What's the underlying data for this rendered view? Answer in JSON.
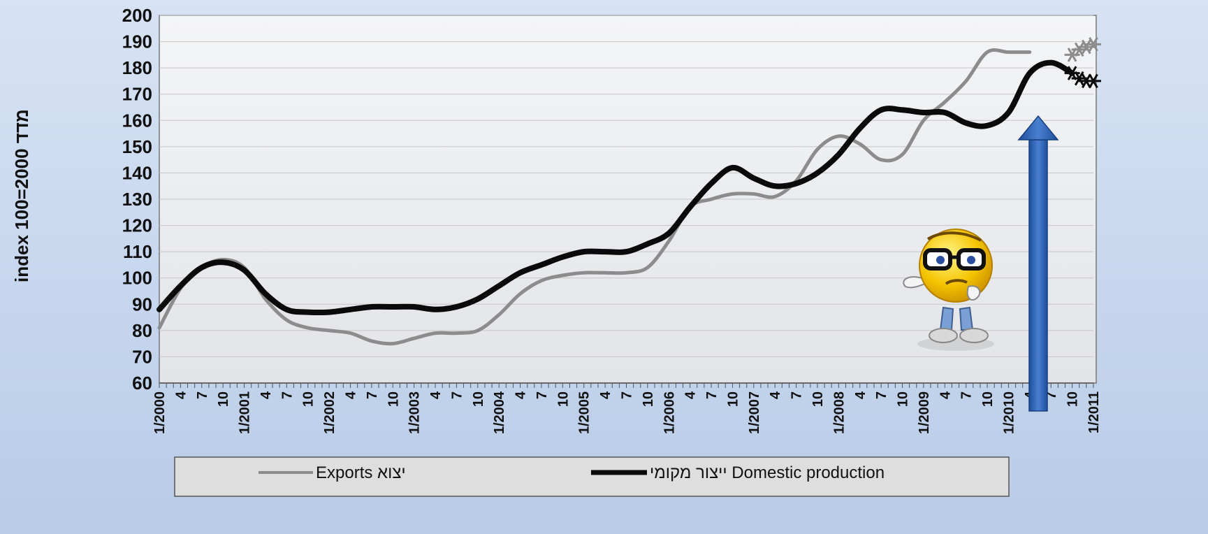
{
  "chart_data": {
    "type": "line",
    "title": "",
    "ylabel": "index 100=2000 מדד",
    "xlabel": "",
    "ylim": [
      60,
      200
    ],
    "y_ticks": [
      60,
      70,
      80,
      90,
      100,
      110,
      120,
      130,
      140,
      150,
      160,
      170,
      180,
      190,
      200
    ],
    "grid": true,
    "legend_position": "bottom",
    "x_tick_labels": [
      "1/2000",
      "4",
      "7",
      "10",
      "1/2001",
      "4",
      "7",
      "10",
      "1/2002",
      "4",
      "7",
      "10",
      "1/2003",
      "4",
      "7",
      "10",
      "1/2004",
      "4",
      "7",
      "10",
      "1/2005",
      "4",
      "7",
      "10",
      "1/2006",
      "4",
      "7",
      "10",
      "1/2007",
      "4",
      "7",
      "10",
      "1/2008",
      "4",
      "7",
      "10",
      "1/2009",
      "4",
      "7",
      "10",
      "1/2010",
      "4",
      "7",
      "10",
      "1/2011"
    ],
    "x_months": [
      "2000-01",
      "2000-04",
      "2000-07",
      "2000-10",
      "2001-01",
      "2001-04",
      "2001-07",
      "2001-10",
      "2002-01",
      "2002-04",
      "2002-07",
      "2002-10",
      "2003-01",
      "2003-04",
      "2003-07",
      "2003-10",
      "2004-01",
      "2004-04",
      "2004-07",
      "2004-10",
      "2005-01",
      "2005-04",
      "2005-07",
      "2005-10",
      "2006-01",
      "2006-04",
      "2006-07",
      "2006-10",
      "2007-01",
      "2007-04",
      "2007-07",
      "2007-10",
      "2008-01",
      "2008-04",
      "2008-07",
      "2008-10",
      "2009-01",
      "2009-04",
      "2009-07",
      "2009-10",
      "2010-01",
      "2010-04",
      "2010-07",
      "2010-10",
      "2011-01"
    ],
    "series": [
      {
        "name": "Exports יצוא",
        "color": "#8c8c8c",
        "values": [
          81,
          96,
          104,
          107,
          104,
          92,
          84,
          81,
          80,
          79,
          76,
          75,
          77,
          79,
          79,
          80,
          86,
          94,
          99,
          101,
          102,
          102,
          102,
          104,
          114,
          127,
          130,
          132,
          132,
          131,
          137,
          149,
          154,
          151,
          145,
          147,
          160,
          167,
          175,
          186,
          186,
          186,
          null,
          null,
          null
        ],
        "projection_markers": [
          {
            "month": "2010-10",
            "value": 185
          },
          {
            "month": "2010-11",
            "value": 187
          },
          {
            "month": "2010-12",
            "value": 188
          },
          {
            "month": "2011-01",
            "value": 189
          }
        ]
      },
      {
        "name": "ייצור מקומי Domestic production",
        "color": "#0a0a0a",
        "values": [
          88,
          97,
          104,
          106,
          103,
          94,
          88,
          87,
          87,
          88,
          89,
          89,
          89,
          88,
          89,
          92,
          97,
          102,
          105,
          108,
          110,
          110,
          110,
          113,
          117,
          127,
          136,
          142,
          138,
          135,
          136,
          140,
          147,
          157,
          164,
          164,
          163,
          163,
          159,
          158,
          163,
          178,
          182,
          178,
          null
        ],
        "projection_markers": [
          {
            "month": "2010-10",
            "value": 178
          },
          {
            "month": "2010-11",
            "value": 176
          },
          {
            "month": "2010-12",
            "value": 175
          },
          {
            "month": "2011-01",
            "value": 175
          }
        ]
      }
    ],
    "annotations": [
      {
        "type": "arrow",
        "direction": "up",
        "color": "#2f5fa8",
        "at_month": "2010-06",
        "from_value": 60,
        "to_value": 162
      },
      {
        "type": "emoji",
        "name": "thinking-nerd-emoji-icon",
        "at_month": "2010-01",
        "value": 100
      }
    ]
  }
}
